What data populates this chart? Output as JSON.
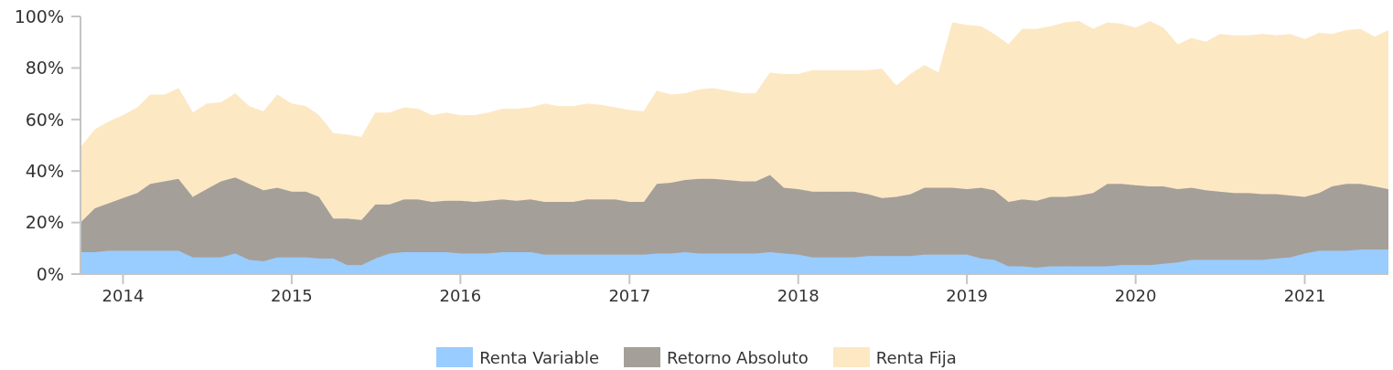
{
  "chart_data": {
    "type": "area",
    "stacked": true,
    "legend": "bottom",
    "x": [
      "2013-10",
      "2013-11",
      "2013-12",
      "2014-01",
      "2014-02",
      "2014-03",
      "2014-04",
      "2014-05",
      "2014-06",
      "2014-07",
      "2014-08",
      "2014-09",
      "2014-10",
      "2014-11",
      "2014-12",
      "2015-01",
      "2015-02",
      "2015-03",
      "2015-04",
      "2015-05",
      "2015-06",
      "2015-07",
      "2015-08",
      "2015-09",
      "2015-10",
      "2015-11",
      "2015-12",
      "2016-01",
      "2016-02",
      "2016-03",
      "2016-04",
      "2016-05",
      "2016-06",
      "2016-07",
      "2016-08",
      "2016-09",
      "2016-10",
      "2016-11",
      "2016-12",
      "2017-01",
      "2017-02",
      "2017-03",
      "2017-04",
      "2017-05",
      "2017-06",
      "2017-07",
      "2017-08",
      "2017-09",
      "2017-10",
      "2017-11",
      "2017-12",
      "2018-01",
      "2018-02",
      "2018-03",
      "2018-04",
      "2018-05",
      "2018-06",
      "2018-07",
      "2018-08",
      "2018-09",
      "2018-10",
      "2018-11",
      "2018-12",
      "2019-01",
      "2019-02",
      "2019-03",
      "2019-04",
      "2019-05",
      "2019-06",
      "2019-07",
      "2019-08",
      "2019-09",
      "2019-10",
      "2019-11",
      "2019-12",
      "2020-01",
      "2020-02",
      "2020-03",
      "2020-04",
      "2020-05",
      "2020-06",
      "2020-07",
      "2020-08",
      "2020-09",
      "2020-10",
      "2020-11",
      "2020-12",
      "2021-01",
      "2021-02",
      "2021-03",
      "2021-04",
      "2021-05",
      "2021-06",
      "2021-07"
    ],
    "xlim": [
      "2013-10",
      "2021-07"
    ],
    "xticks": [
      "2014",
      "2015",
      "2016",
      "2017",
      "2018",
      "2019",
      "2020",
      "2021"
    ],
    "ylim": [
      0,
      100
    ],
    "yticks": [
      {
        "value": 0,
        "label": "0%"
      },
      {
        "value": 20,
        "label": "20%"
      },
      {
        "value": 40,
        "label": "40%"
      },
      {
        "value": 60,
        "label": "60%"
      },
      {
        "value": 80,
        "label": "80%"
      },
      {
        "value": 100,
        "label": "100%"
      }
    ],
    "series": [
      {
        "name": "Renta Variable",
        "color": "#99ccff",
        "values": [
          8.5,
          8.5,
          9,
          9,
          9,
          9,
          9,
          9,
          6.5,
          6.5,
          6.5,
          8,
          5.5,
          5,
          6.5,
          6.5,
          6.5,
          6,
          6,
          3.5,
          3.5,
          6,
          8,
          8.5,
          8.5,
          8.5,
          8.5,
          8,
          8,
          8,
          8.5,
          8.5,
          8.5,
          7.5,
          7.5,
          7.5,
          7.5,
          7.5,
          7.5,
          7.5,
          7.5,
          8,
          8,
          8.5,
          8,
          8,
          8,
          8,
          8,
          8.5,
          8,
          7.5,
          6.5,
          6.5,
          6.5,
          6.5,
          7,
          7,
          7,
          7,
          7.5,
          7.5,
          7.5,
          7.5,
          6,
          5.5,
          3,
          3,
          2.5,
          3,
          3,
          3,
          3,
          3,
          3.5,
          3.5,
          3.5,
          4,
          4.5,
          5.5,
          5.5,
          5.5,
          5.5,
          5.5,
          5.5,
          6,
          6.5,
          8,
          9,
          9,
          9,
          9.5,
          9.5,
          9.5
        ]
      },
      {
        "name": "Retorno Absoluto",
        "color": "#a59f99",
        "values": [
          11.5,
          17,
          18.5,
          20.5,
          22.5,
          26,
          27,
          28,
          23.5,
          26.5,
          29.5,
          29.5,
          29.5,
          27.5,
          27,
          25.5,
          25.5,
          24,
          15.5,
          18,
          17.5,
          21,
          19,
          20.5,
          20.5,
          19.5,
          20,
          20.5,
          20,
          20.5,
          20.5,
          20,
          20.5,
          20.5,
          20.5,
          20.5,
          21.5,
          21.5,
          21.5,
          20.5,
          20.5,
          27,
          27.5,
          28,
          29,
          29,
          28.5,
          28,
          28,
          30,
          25.5,
          25.5,
          25.5,
          25.5,
          25.5,
          25.5,
          24,
          22.5,
          23,
          24,
          26,
          26,
          26,
          25.5,
          27.5,
          27,
          25,
          26,
          26,
          27,
          27,
          27.5,
          28.5,
          32,
          31.5,
          31,
          30.5,
          30,
          28.5,
          28,
          27,
          26.5,
          26,
          26,
          25.5,
          25,
          24,
          22,
          22.5,
          25,
          26,
          25.5,
          24.5,
          23.5
        ]
      },
      {
        "name": "Renta Fija",
        "color": "#fde8c4",
        "values": [
          29,
          30.5,
          31.5,
          32,
          33,
          34.5,
          33.5,
          35,
          32.5,
          33,
          30.5,
          32.5,
          30,
          30.5,
          36,
          34,
          33,
          31.5,
          33,
          32.5,
          32,
          35.5,
          35.5,
          35.5,
          35,
          33.5,
          34,
          33,
          33.5,
          34,
          35,
          35.5,
          35.5,
          38,
          37,
          37,
          37,
          36.5,
          35.5,
          35.5,
          35,
          36,
          34,
          33.5,
          34.5,
          35,
          34.5,
          34,
          34,
          39.5,
          44,
          44.5,
          47,
          47,
          47,
          47,
          48,
          50,
          43,
          46.5,
          47.5,
          44.5,
          64,
          63.5,
          62.5,
          60.5,
          61,
          66,
          66.5,
          66,
          67.5,
          67.5,
          63.5,
          62.5,
          62,
          61,
          64,
          61.5,
          56,
          58,
          57.5,
          61,
          61,
          61,
          62,
          61.5,
          62.5,
          61,
          62,
          59,
          59.5,
          60,
          58,
          61.5
        ]
      }
    ]
  }
}
